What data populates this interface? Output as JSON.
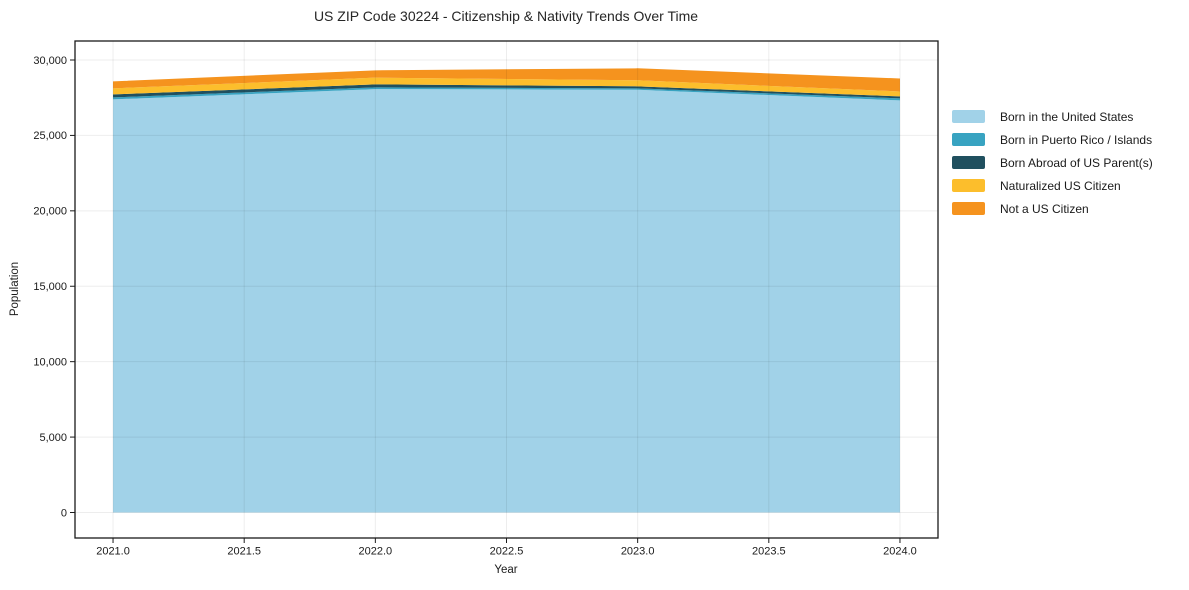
{
  "chart_data": {
    "type": "area",
    "stacked": true,
    "title": "US ZIP Code 30224 - Citizenship & Nativity Trends Over Time",
    "xlabel": "Year",
    "ylabel": "Population",
    "x": [
      2021,
      2022,
      2023,
      2024
    ],
    "series": [
      {
        "name": "Born in the United States",
        "color": "#A1D2E8",
        "values": [
          27390,
          28070,
          28030,
          27320
        ]
      },
      {
        "name": "Born in Puerto Rico / Islands",
        "color": "#38A3C1",
        "values": [
          130,
          115,
          90,
          135
        ]
      },
      {
        "name": "Born Abroad of US Parent(s)",
        "color": "#20505F",
        "values": [
          200,
          200,
          135,
          130
        ]
      },
      {
        "name": "Naturalized US Citizen",
        "color": "#FCBE2C",
        "values": [
          400,
          445,
          400,
          330
        ]
      },
      {
        "name": "Not a US Citizen",
        "color": "#F5931E",
        "values": [
          465,
          485,
          795,
          860
        ]
      }
    ],
    "xticks": [
      {
        "value": 2021.0,
        "label": "2021.0"
      },
      {
        "value": 2021.5,
        "label": "2021.5"
      },
      {
        "value": 2022.0,
        "label": "2022.0"
      },
      {
        "value": 2022.5,
        "label": "2022.5"
      },
      {
        "value": 2023.0,
        "label": "2023.0"
      },
      {
        "value": 2023.5,
        "label": "2023.5"
      },
      {
        "value": 2024.0,
        "label": "2024.0"
      }
    ],
    "yticks": [
      {
        "value": 0,
        "label": "0"
      },
      {
        "value": 5000,
        "label": "5,000"
      },
      {
        "value": 10000,
        "label": "10,000"
      },
      {
        "value": 15000,
        "label": "15,000"
      },
      {
        "value": 20000,
        "label": "20,000"
      },
      {
        "value": 25000,
        "label": "25,000"
      },
      {
        "value": 30000,
        "label": "30,000"
      }
    ],
    "xlim": [
      2020.855,
      2024.145
    ],
    "ylim": [
      -1691,
      31260
    ],
    "grid": true,
    "legend_position": "right-outside",
    "grid_color": "#e9e9e9",
    "spine_color": "#1a1a1a"
  }
}
